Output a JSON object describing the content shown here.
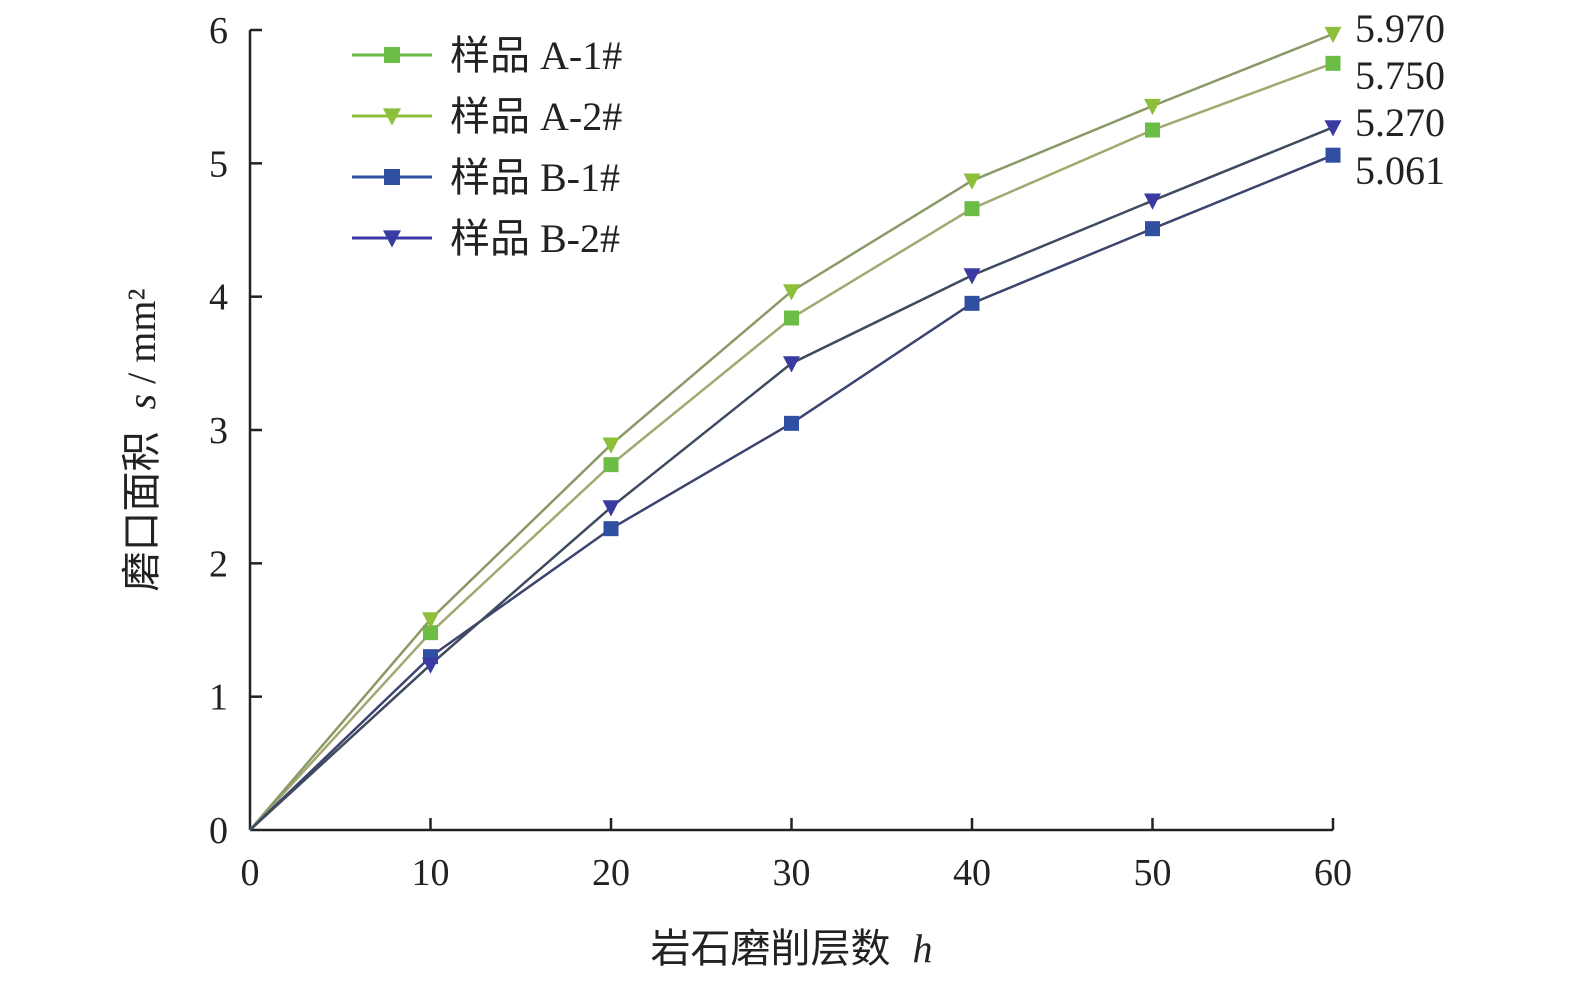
{
  "chart_data": {
    "type": "line",
    "xlabel": "岩石磨削层数",
    "xlabel_var": "h",
    "ylabel": "磨口面积",
    "ylabel_var": "s",
    "ylabel_unit": "mm²",
    "x": [
      0,
      10,
      20,
      30,
      40,
      50,
      60
    ],
    "xlim": [
      0,
      60
    ],
    "ylim": [
      0,
      6
    ],
    "xticks": [
      "0",
      "10",
      "20",
      "30",
      "40",
      "50",
      "60"
    ],
    "yticks": [
      "0",
      "1",
      "2",
      "3",
      "4",
      "5",
      "6"
    ],
    "grid": false,
    "legend_position": "top-left",
    "series": [
      {
        "name": "样品 A-1#",
        "marker": "square",
        "color": "#6cbd45",
        "line_color": "#a3a870",
        "values": [
          0,
          1.48,
          2.74,
          3.84,
          4.66,
          5.25,
          5.75
        ]
      },
      {
        "name": "样品 A-2#",
        "marker": "triangle-down",
        "color": "#8dbf3a",
        "line_color": "#8a9a66",
        "values": [
          0,
          1.58,
          2.89,
          4.04,
          4.87,
          5.43,
          5.97
        ]
      },
      {
        "name": "样品 B-1#",
        "marker": "square",
        "color": "#2f4fa3",
        "line_color": "#3c4470",
        "values": [
          0,
          1.3,
          2.26,
          3.05,
          3.95,
          4.51,
          5.061
        ]
      },
      {
        "name": "样品 B-2#",
        "marker": "triangle-down",
        "color": "#3a3aa3",
        "line_color": "#3e4a5e",
        "values": [
          0,
          1.24,
          2.42,
          3.5,
          4.16,
          4.72,
          5.27
        ]
      }
    ],
    "end_labels": [
      {
        "text": "5.970",
        "y": 5.97
      },
      {
        "text": "5.750",
        "y": 5.75
      },
      {
        "text": "5.270",
        "y": 5.27
      },
      {
        "text": "5.061",
        "y": 5.061
      }
    ]
  }
}
